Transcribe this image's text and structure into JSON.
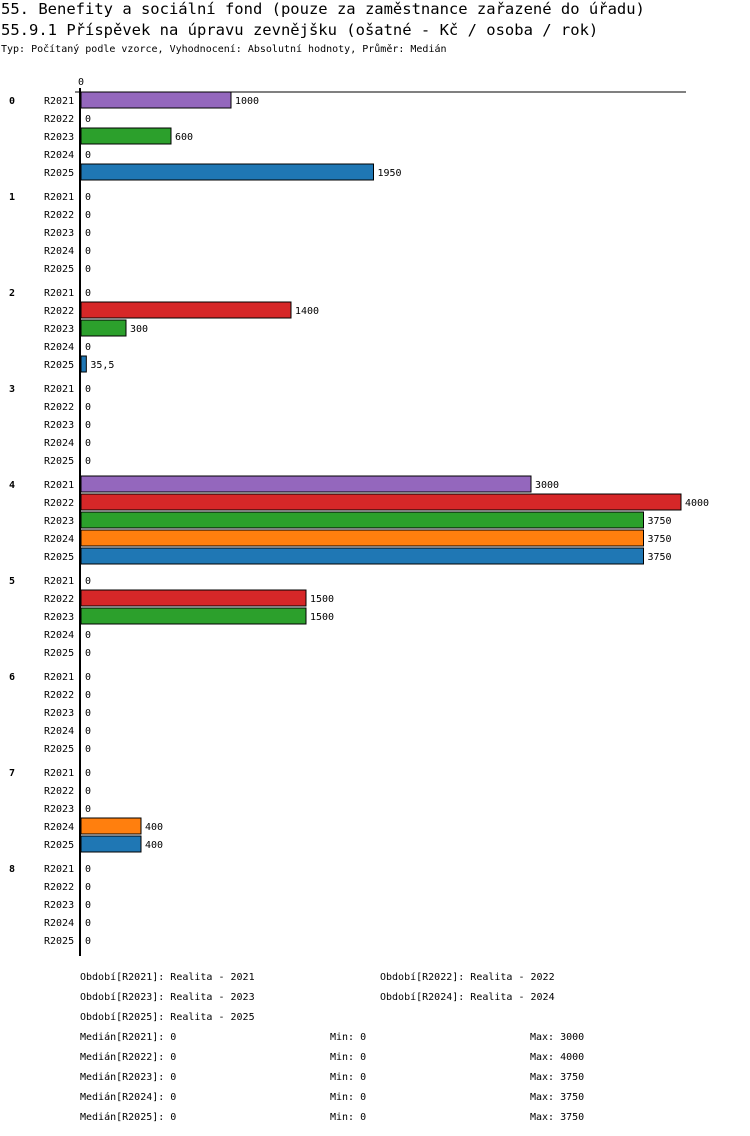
{
  "header": {
    "title": "55. Benefity a sociální fond (pouze za zaměstnance zařazené do úřadu)",
    "subtitle": "55.9.1 Příspěvek na úpravu zevnějšku (ošatné - Kč / osoba / rok)",
    "meta": "Typ: Počítaný podle vzorce, Vyhodnocení: Absolutní hodnoty, Průměr: Medián"
  },
  "chart_data": {
    "type": "bar",
    "orientation": "horizontal",
    "axis_zero_label": "0",
    "xlim": [
      0,
      4000
    ],
    "groups": [
      "0",
      "1",
      "2",
      "3",
      "4",
      "5",
      "6",
      "7",
      "8"
    ],
    "series_names": [
      "R2021",
      "R2022",
      "R2023",
      "R2024",
      "R2025"
    ],
    "colors": {
      "R2021": "#9467bd",
      "R2022": "#d62728",
      "R2023": "#2ca02c",
      "R2024": "#ff7f0e",
      "R2025": "#1f77b4"
    },
    "values": [
      [
        1000,
        0,
        600,
        0,
        1950
      ],
      [
        0,
        0,
        0,
        0,
        0
      ],
      [
        0,
        1400,
        300,
        0,
        35.5
      ],
      [
        0,
        0,
        0,
        0,
        0
      ],
      [
        3000,
        4000,
        3750,
        3750,
        3750
      ],
      [
        0,
        1500,
        1500,
        0,
        0
      ],
      [
        0,
        0,
        0,
        0,
        0
      ],
      [
        0,
        0,
        0,
        400,
        400
      ],
      [
        0,
        0,
        0,
        0,
        0
      ]
    ],
    "value_labels": [
      [
        "1000",
        "0",
        "600",
        "0",
        "1950"
      ],
      [
        "0",
        "0",
        "0",
        "0",
        "0"
      ],
      [
        "0",
        "1400",
        "300",
        "0",
        "35,5"
      ],
      [
        "0",
        "0",
        "0",
        "0",
        "0"
      ],
      [
        "3000",
        "4000",
        "3750",
        "3750",
        "3750"
      ],
      [
        "0",
        "1500",
        "1500",
        "0",
        "0"
      ],
      [
        "0",
        "0",
        "0",
        "0",
        "0"
      ],
      [
        "0",
        "0",
        "0",
        "400",
        "400"
      ],
      [
        "0",
        "0",
        "0",
        "0",
        "0"
      ]
    ]
  },
  "legend": {
    "periods": [
      "Období[R2021]: Realita - 2021",
      "Období[R2022]: Realita - 2022",
      "Období[R2023]: Realita - 2023",
      "Období[R2024]: Realita - 2024",
      "Období[R2025]: Realita - 2025"
    ],
    "stats": [
      {
        "median": "Medián[R2021]: 0",
        "min": "Min: 0",
        "max": "Max: 3000"
      },
      {
        "median": "Medián[R2022]: 0",
        "min": "Min: 0",
        "max": "Max: 4000"
      },
      {
        "median": "Medián[R2023]: 0",
        "min": "Min: 0",
        "max": "Max: 3750"
      },
      {
        "median": "Medián[R2024]: 0",
        "min": "Min: 0",
        "max": "Max: 3750"
      },
      {
        "median": "Medián[R2025]: 0",
        "min": "Min: 0",
        "max": "Max: 3750"
      }
    ]
  }
}
